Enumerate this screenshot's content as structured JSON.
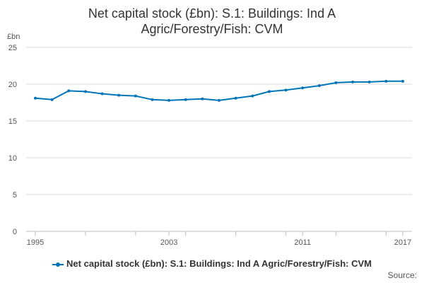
{
  "chart_data": {
    "type": "line",
    "title_lines": [
      "Net capital stock (£bn): S.1: Buildings: Ind A",
      "Agric/Forestry/Fish: CVM"
    ],
    "ylabel": "£bn",
    "xlabel": "",
    "ylim": [
      0,
      25
    ],
    "yticks": [
      0,
      5,
      10,
      15,
      20,
      25
    ],
    "xlim": [
      1995,
      2017
    ],
    "xticks": [
      1995,
      2003,
      2011,
      2017
    ],
    "grid": true,
    "legend_position": "bottom",
    "series": [
      {
        "name": "Net capital stock (£bn): S.1: Buildings: Ind A Agric/Forestry/Fish: CVM",
        "color": "#0075b8",
        "x": [
          1995,
          1996,
          1997,
          1998,
          1999,
          2000,
          2001,
          2002,
          2003,
          2004,
          2005,
          2006,
          2007,
          2008,
          2009,
          2010,
          2011,
          2012,
          2013,
          2014,
          2015,
          2016,
          2017
        ],
        "values": [
          18.1,
          17.9,
          19.1,
          19.0,
          18.7,
          18.5,
          18.4,
          17.9,
          17.8,
          17.9,
          18.0,
          17.8,
          18.1,
          18.4,
          19.0,
          19.2,
          19.5,
          19.8,
          20.2,
          20.3,
          20.3,
          20.4,
          20.4
        ]
      }
    ]
  },
  "source_label": "Source:"
}
